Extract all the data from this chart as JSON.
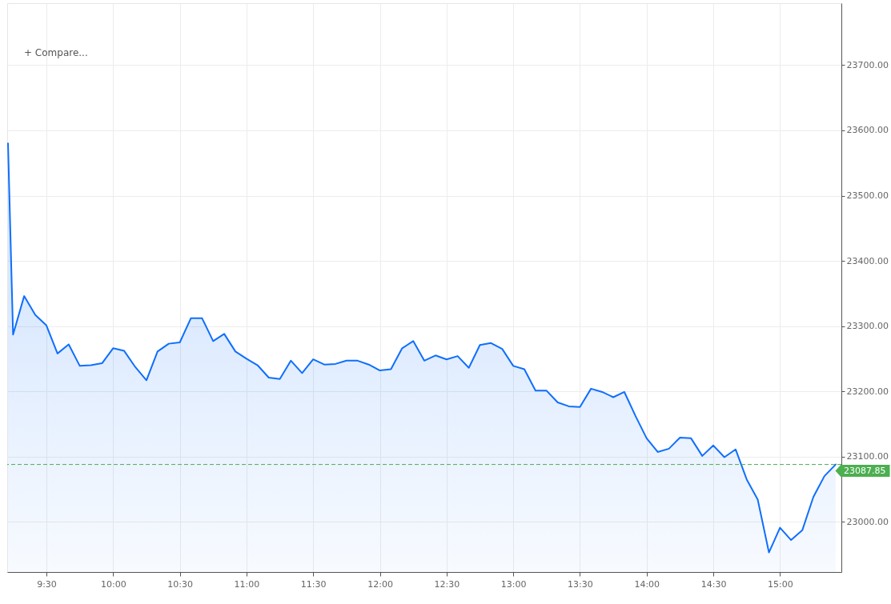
{
  "chart_data": {
    "type": "area",
    "annotations": [
      "+ Compare..."
    ],
    "x": [
      9.212,
      9.25,
      9.333,
      9.417,
      9.5,
      9.583,
      9.667,
      9.75,
      9.833,
      9.917,
      10,
      10.083,
      10.167,
      10.25,
      10.333,
      10.417,
      10.5,
      10.583,
      10.667,
      10.75,
      10.833,
      10.917,
      11,
      11.083,
      11.167,
      11.25,
      11.333,
      11.417,
      11.5,
      11.583,
      11.667,
      11.75,
      11.833,
      11.917,
      12,
      12.083,
      12.167,
      12.25,
      12.333,
      12.417,
      12.5,
      12.583,
      12.667,
      12.75,
      12.833,
      12.917,
      13,
      13.083,
      13.167,
      13.25,
      13.333,
      13.417,
      13.5,
      13.583,
      13.667,
      13.75,
      13.833,
      13.917,
      14,
      14.083,
      14.167,
      14.25,
      14.333,
      14.417,
      14.5,
      14.583,
      14.667,
      14.75,
      14.833,
      14.917,
      15,
      15.083,
      15.167,
      15.25,
      15.333,
      15.417
    ],
    "series": [
      {
        "color": "#0f6ffc",
        "values": [
          23580,
          23287,
          23346,
          23317,
          23301,
          23258,
          23272,
          23239,
          23240,
          23243,
          23266,
          23262,
          23237,
          23217,
          23261,
          23273,
          23275,
          23312,
          23312,
          23277,
          23288,
          23261,
          23250,
          23240,
          23221,
          23219,
          23247,
          23228,
          23249,
          23241,
          23242,
          23247,
          23247,
          23241,
          23232,
          23234,
          23266,
          23277,
          23247,
          23255,
          23249,
          23254,
          23236,
          23271,
          23274,
          23265,
          23239,
          23234,
          23201,
          23201,
          23183,
          23177,
          23176,
          23204,
          23199,
          23191,
          23199,
          23162,
          23128,
          23107,
          23112,
          23129,
          23128,
          23101,
          23117,
          23099,
          23111,
          23065,
          23034,
          22953,
          22991,
          22972,
          22987,
          23038,
          23070,
          23087.85
        ]
      }
    ],
    "xlim": [
      9.206,
      15.46
    ],
    "xticks": [
      {
        "value": 9.5,
        "label": "9:30"
      },
      {
        "value": 10,
        "label": "10:00"
      },
      {
        "value": 10.5,
        "label": "10:30"
      },
      {
        "value": 11,
        "label": "11:00"
      },
      {
        "value": 11.5,
        "label": "11:30"
      },
      {
        "value": 12,
        "label": "12:00"
      },
      {
        "value": 12.5,
        "label": "12:30"
      },
      {
        "value": 13,
        "label": "13:00"
      },
      {
        "value": 13.5,
        "label": "13:30"
      },
      {
        "value": 14,
        "label": "14:00"
      },
      {
        "value": 14.5,
        "label": "14:30"
      },
      {
        "value": 15,
        "label": "15:00"
      }
    ],
    "ylim": [
      22923,
      23795
    ],
    "yticks": [
      {
        "value": 23000,
        "label": "23000.00"
      },
      {
        "value": 23100,
        "label": "23100.00"
      },
      {
        "value": 23200,
        "label": "23200.00"
      },
      {
        "value": 23300,
        "label": "23300.00"
      },
      {
        "value": 23400,
        "label": "23400.00"
      },
      {
        "value": 23500,
        "label": "23500.00"
      },
      {
        "value": 23600,
        "label": "23600.00"
      },
      {
        "value": 23700,
        "label": "23700.00"
      }
    ],
    "ref_lines": [
      {
        "axis": "y",
        "value": 23087.85,
        "label": "23087.85",
        "color": "#4caf50",
        "line_style": "dashed"
      }
    ],
    "grid": true
  }
}
